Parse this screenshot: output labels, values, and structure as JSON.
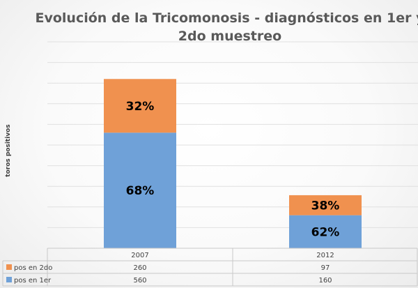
{
  "chart_data": {
    "type": "bar",
    "stacked": true,
    "title_line1": "Evolución de la Tricomonosis - diagnósticos en 1er y",
    "title_line2": "2do muestreo",
    "ylabel": "toros positivos",
    "categories": [
      "2007",
      "2012"
    ],
    "series": [
      {
        "name": "pos en 1er",
        "color": "#6fa1d8",
        "values": [
          560,
          160
        ],
        "labels": [
          "68%",
          "62%"
        ]
      },
      {
        "name": "pos en 2do",
        "color": "#f0914f",
        "values": [
          260,
          97
        ],
        "labels": [
          "32%",
          "38%"
        ]
      }
    ],
    "ylim": [
      0,
      1000
    ],
    "grid": true,
    "legend": "data-table"
  }
}
